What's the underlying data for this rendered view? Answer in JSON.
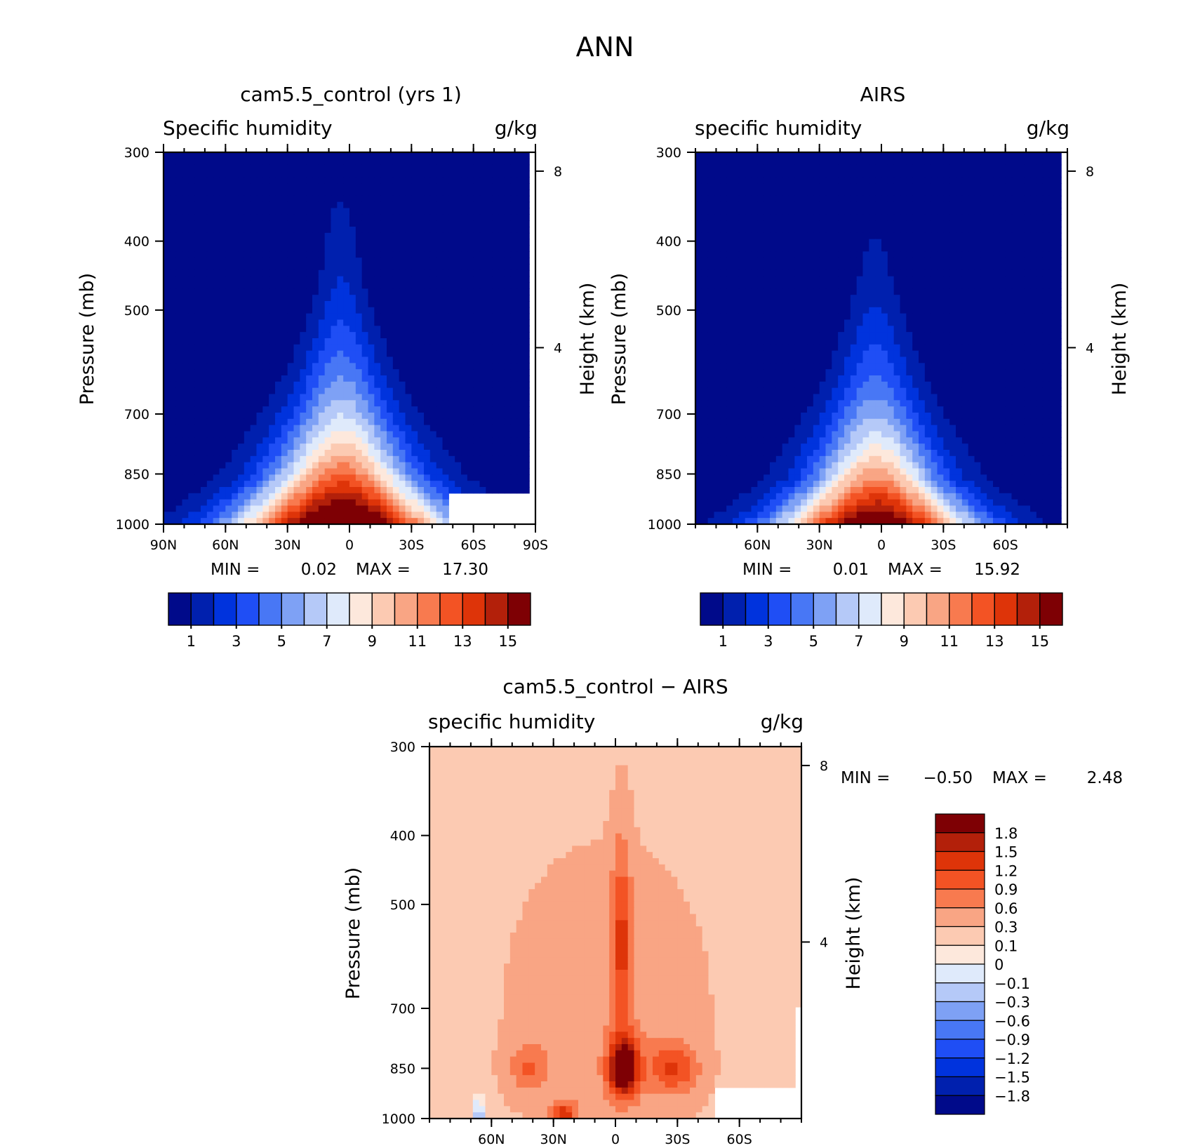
{
  "figure_title": "ANN",
  "chart_data": [
    {
      "id": "model",
      "type": "heatmap",
      "title": "cam5.5_control (yrs 1)",
      "left_label": "Specific humidity",
      "right_label": "g/kg",
      "ylabel": "Pressure (mb)",
      "y2label": "Height (km)",
      "x_ticks": [
        "90N",
        "60N",
        "30N",
        "0",
        "30S",
        "60S",
        "90S"
      ],
      "y_ticks": [
        "300",
        "400",
        "500",
        "700",
        "850",
        "1000"
      ],
      "y2_ticks": [
        "8",
        "4"
      ],
      "min_label": "MIN =",
      "min_value": "0.02",
      "max_label": "MAX =",
      "max_value": "17.30",
      "colorbar_labels": [
        "1",
        "3",
        "5",
        "7",
        "9",
        "11",
        "13",
        "15"
      ],
      "colorbar_orientation": "horizontal",
      "levels": [
        1,
        2,
        3,
        4,
        5,
        6,
        7,
        8,
        9,
        10,
        11,
        12,
        13,
        14,
        15
      ]
    },
    {
      "id": "obs",
      "type": "heatmap",
      "title": "AIRS",
      "left_label": "specific humidity",
      "right_label": "g/kg",
      "ylabel": "Pressure (mb)",
      "y2label": "Height (km)",
      "x_ticks": [
        "60N",
        "30N",
        "0",
        "30S",
        "60S"
      ],
      "y_ticks": [
        "300",
        "400",
        "500",
        "700",
        "850",
        "1000"
      ],
      "y2_ticks": [
        "8",
        "4"
      ],
      "min_label": "MIN =",
      "min_value": "0.01",
      "max_label": "MAX =",
      "max_value": "15.92",
      "colorbar_labels": [
        "1",
        "3",
        "5",
        "7",
        "9",
        "11",
        "13",
        "15"
      ],
      "colorbar_orientation": "horizontal",
      "levels": [
        1,
        2,
        3,
        4,
        5,
        6,
        7,
        8,
        9,
        10,
        11,
        12,
        13,
        14,
        15
      ]
    },
    {
      "id": "diff",
      "type": "heatmap",
      "title": "cam5.5_control − AIRS",
      "left_label": "specific humidity",
      "right_label": "g/kg",
      "ylabel": "Pressure (mb)",
      "y2label": "Height (km)",
      "x_ticks": [
        "60N",
        "30N",
        "0",
        "30S",
        "60S"
      ],
      "y_ticks": [
        "300",
        "400",
        "500",
        "700",
        "850",
        "1000"
      ],
      "y2_ticks": [
        "8",
        "4"
      ],
      "min_label": "MIN =",
      "min_value": "−0.50",
      "max_label": "MAX =",
      "max_value": "2.48",
      "colorbar_labels": [
        "1.8",
        "1.5",
        "1.2",
        "0.9",
        "0.6",
        "0.3",
        "0.1",
        "0",
        "−0.1",
        "−0.3",
        "−0.6",
        "−0.9",
        "−1.2",
        "−1.5",
        "−1.8"
      ],
      "colorbar_orientation": "vertical",
      "levels": [
        -1.8,
        -1.5,
        -1.2,
        -0.9,
        -0.6,
        -0.3,
        -0.1,
        0,
        0.1,
        0.3,
        0.6,
        0.9,
        1.2,
        1.5,
        1.8
      ]
    }
  ],
  "colors": {
    "sequential": [
      "#000a8a",
      "#0020ae",
      "#0033dd",
      "#1f4ef5",
      "#4877f5",
      "#7ea1f5",
      "#b5c9f8",
      "#dfeafb",
      "#fde8dc",
      "#fccab2",
      "#f9a584",
      "#f87a4f",
      "#f35324",
      "#de3409",
      "#b3200a",
      "#7e0004"
    ],
    "diverging": [
      "#7e0004",
      "#b3200a",
      "#de3409",
      "#f35324",
      "#f87a4f",
      "#f9a584",
      "#fccab2",
      "#fde8dc",
      "#dfeafb",
      "#b5c9f8",
      "#7ea1f5",
      "#4877f5",
      "#1f4ef5",
      "#0033dd",
      "#0020ae",
      "#000a8a"
    ]
  }
}
